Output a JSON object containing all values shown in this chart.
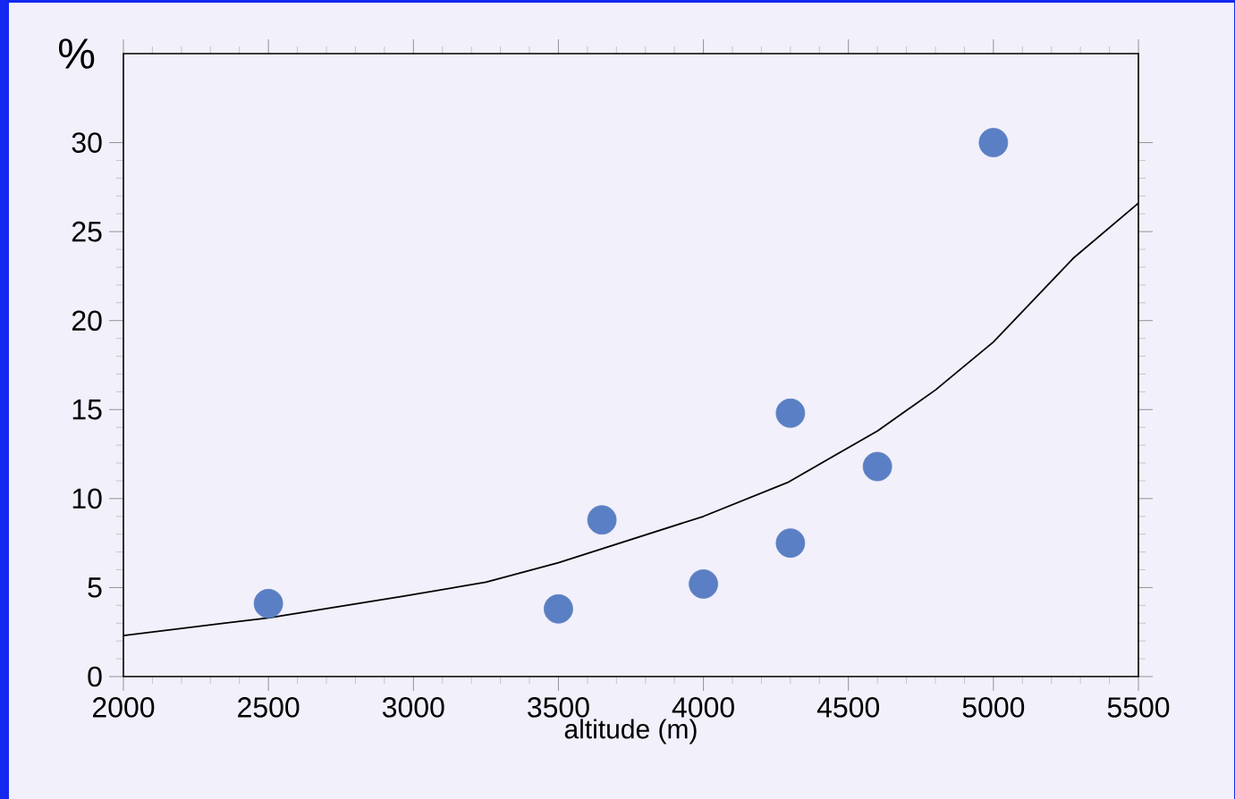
{
  "chart_data": {
    "type": "scatter",
    "xlabel": "altitude (m)",
    "ylabel": "%",
    "xlim": [
      2000,
      5500
    ],
    "xticks": [
      2000,
      2500,
      3000,
      3500,
      4000,
      4500,
      5000,
      5500
    ],
    "ylim": [
      0,
      35
    ],
    "yticks": [
      0,
      5,
      10,
      15,
      20,
      25,
      30
    ],
    "grid": false,
    "series": [
      {
        "color": "#5b7fc4",
        "marker": "circle",
        "x": [
          2500,
          3500,
          3650,
          4000,
          4300,
          4300,
          4600,
          5000
        ],
        "values": [
          4.1,
          3.8,
          8.8,
          5.2,
          14.8,
          7.5,
          11.8,
          30
        ]
      },
      {
        "type": "line",
        "color": "#000000",
        "marker": "none",
        "line_style": "solid",
        "x": [
          2000,
          2500,
          2960,
          3250,
          3500,
          4000,
          4290,
          4600,
          4800,
          5000,
          5275,
          5500
        ],
        "values": [
          2.3,
          3.3,
          4.5,
          5.3,
          6.4,
          9.0,
          10.9,
          13.8,
          16.1,
          18.8,
          23.5,
          26.6
        ]
      }
    ]
  }
}
